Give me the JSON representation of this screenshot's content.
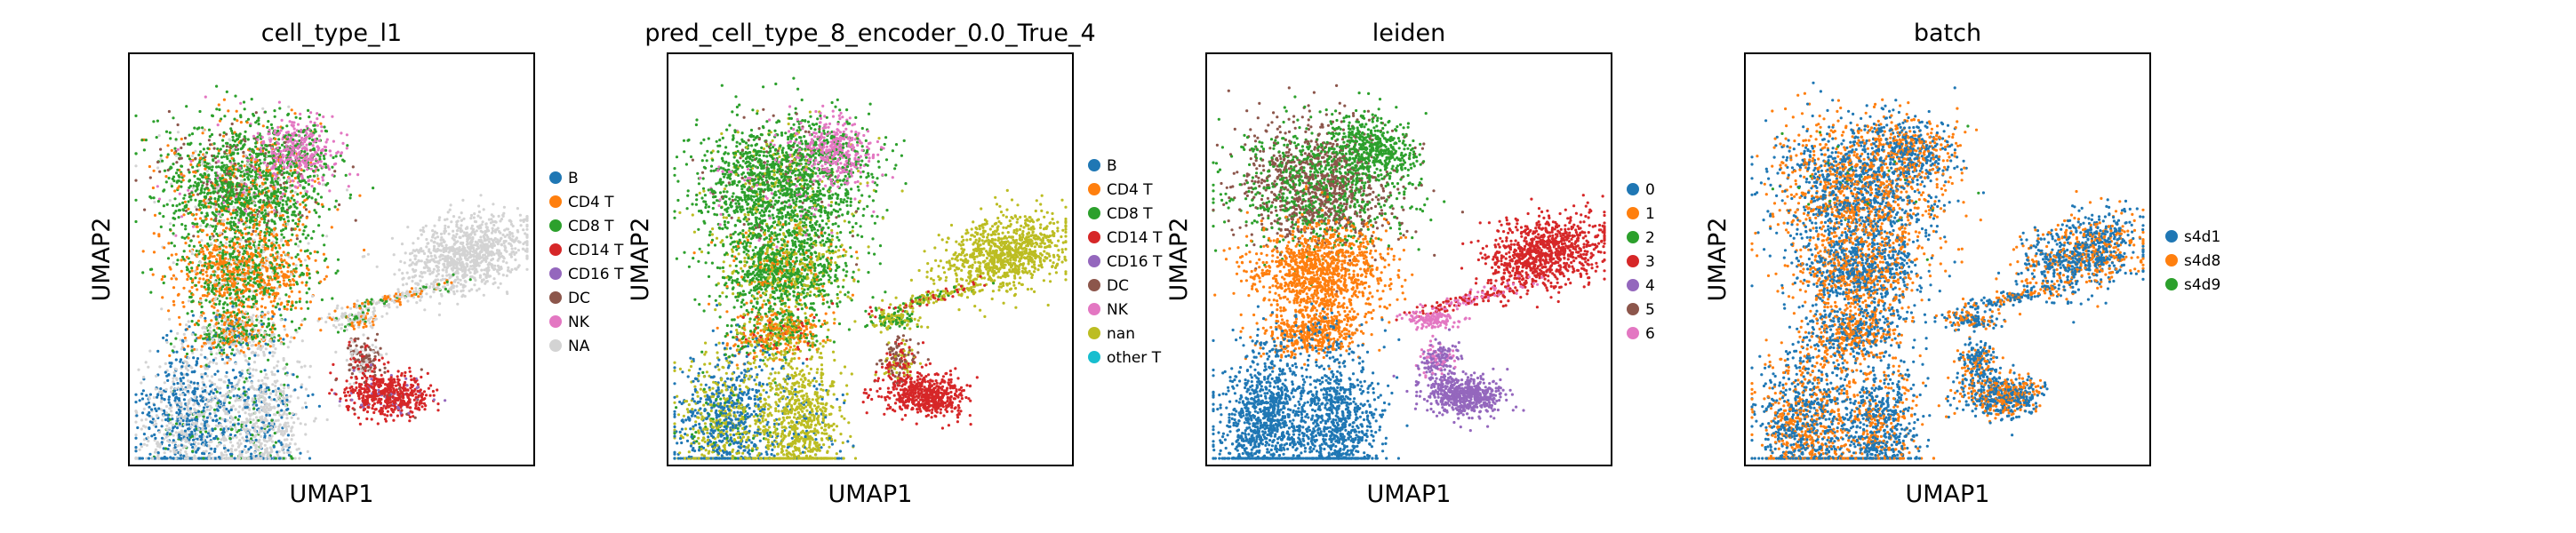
{
  "figure": {
    "panels": [
      {
        "chart_data": {
          "type": "scatter",
          "title": "cell_type_l1",
          "xlabel": "UMAP1",
          "ylabel": "UMAP2",
          "grid": false,
          "legend_position": "right",
          "legend": [
            {
              "label": "B",
              "color": "#1f77b4"
            },
            {
              "label": "CD4 T",
              "color": "#ff7f0e"
            },
            {
              "label": "CD8 T",
              "color": "#2ca02c"
            },
            {
              "label": "CD14 T",
              "color": "#d62728"
            },
            {
              "label": "CD16 T",
              "color": "#9467bd"
            },
            {
              "label": "DC",
              "color": "#8c564b"
            },
            {
              "label": "NK",
              "color": "#e377c2"
            },
            {
              "label": "NA",
              "color": "#d3d3d3"
            }
          ],
          "regions": [
            {
              "name": "upper-left",
              "mix": [
                [
                  2,
                  0.62
                ],
                [
                  1,
                  0.16
                ],
                [
                  5,
                  0.1
                ],
                [
                  6,
                  0.04
                ],
                [
                  7,
                  0.08
                ]
              ]
            },
            {
              "name": "upper-right-lobe",
              "mix": [
                [
                  6,
                  0.7
                ],
                [
                  2,
                  0.3
                ]
              ]
            },
            {
              "name": "center",
              "mix": [
                [
                  1,
                  0.55
                ],
                [
                  2,
                  0.35
                ],
                [
                  7,
                  0.1
                ]
              ]
            },
            {
              "name": "neck",
              "mix": [
                [
                  1,
                  0.3
                ],
                [
                  2,
                  0.3
                ],
                [
                  7,
                  0.3
                ],
                [
                  0,
                  0.1
                ]
              ]
            },
            {
              "name": "bottom-left",
              "mix": [
                [
                  0,
                  0.5
                ],
                [
                  7,
                  0.45
                ],
                [
                  2,
                  0.05
                ]
              ]
            },
            {
              "name": "bottom-middle",
              "mix": [
                [
                  7,
                  0.7
                ],
                [
                  0,
                  0.2
                ],
                [
                  2,
                  0.1
                ]
              ]
            },
            {
              "name": "right-arm",
              "mix": [
                [
                  7,
                  1.0
                ]
              ]
            },
            {
              "name": "thin-bridge",
              "mix": [
                [
                  7,
                  0.6
                ],
                [
                  1,
                  0.2
                ],
                [
                  2,
                  0.2
                ]
              ]
            },
            {
              "name": "pink-island",
              "mix": [
                [
                  7,
                  0.6
                ],
                [
                  2,
                  0.2
                ],
                [
                  1,
                  0.2
                ]
              ]
            },
            {
              "name": "lower-right-stem",
              "mix": [
                [
                  5,
                  0.45
                ],
                [
                  7,
                  0.35
                ],
                [
                  3,
                  0.2
                ]
              ]
            },
            {
              "name": "lower-right-blob",
              "mix": [
                [
                  3,
                  0.9
                ],
                [
                  4,
                  0.08
                ],
                [
                  5,
                  0.02
                ]
              ]
            }
          ]
        }
      },
      {
        "chart_data": {
          "type": "scatter",
          "title": "pred_cell_type_8_encoder_0.0_True_4",
          "xlabel": "UMAP1",
          "ylabel": "UMAP2",
          "grid": false,
          "legend_position": "right",
          "legend": [
            {
              "label": "B",
              "color": "#1f77b4"
            },
            {
              "label": "CD4 T",
              "color": "#ff7f0e"
            },
            {
              "label": "CD8 T",
              "color": "#2ca02c"
            },
            {
              "label": "CD14 T",
              "color": "#d62728"
            },
            {
              "label": "CD16 T",
              "color": "#9467bd"
            },
            {
              "label": "DC",
              "color": "#8c564b"
            },
            {
              "label": "NK",
              "color": "#e377c2"
            },
            {
              "label": "nan",
              "color": "#bcbd22"
            },
            {
              "label": "other T",
              "color": "#17becf"
            }
          ],
          "regions": [
            {
              "name": "upper-left",
              "mix": [
                [
                  2,
                  0.8
                ],
                [
                  7,
                  0.1
                ],
                [
                  6,
                  0.05
                ],
                [
                  5,
                  0.05
                ]
              ]
            },
            {
              "name": "upper-right-lobe",
              "mix": [
                [
                  6,
                  0.75
                ],
                [
                  2,
                  0.25
                ]
              ]
            },
            {
              "name": "center",
              "mix": [
                [
                  2,
                  0.7
                ],
                [
                  7,
                  0.2
                ],
                [
                  1,
                  0.1
                ]
              ]
            },
            {
              "name": "neck",
              "mix": [
                [
                  1,
                  0.4
                ],
                [
                  2,
                  0.3
                ],
                [
                  7,
                  0.2
                ],
                [
                  3,
                  0.1
                ]
              ]
            },
            {
              "name": "bottom-left",
              "mix": [
                [
                  0,
                  0.55
                ],
                [
                  7,
                  0.4
                ],
                [
                  2,
                  0.05
                ]
              ]
            },
            {
              "name": "bottom-middle",
              "mix": [
                [
                  7,
                  0.9
                ],
                [
                  0,
                  0.1
                ]
              ]
            },
            {
              "name": "right-arm",
              "mix": [
                [
                  7,
                  1.0
                ]
              ]
            },
            {
              "name": "thin-bridge",
              "mix": [
                [
                  7,
                  0.6
                ],
                [
                  2,
                  0.2
                ],
                [
                  3,
                  0.2
                ]
              ]
            },
            {
              "name": "pink-island",
              "mix": [
                [
                  7,
                  0.6
                ],
                [
                  2,
                  0.4
                ]
              ]
            },
            {
              "name": "lower-right-stem",
              "mix": [
                [
                  5,
                  0.4
                ],
                [
                  7,
                  0.3
                ],
                [
                  3,
                  0.3
                ]
              ]
            },
            {
              "name": "lower-right-blob",
              "mix": [
                [
                  3,
                  1.0
                ]
              ]
            }
          ]
        }
      },
      {
        "chart_data": {
          "type": "scatter",
          "title": "leiden",
          "xlabel": "UMAP1",
          "ylabel": "UMAP2",
          "grid": false,
          "legend_position": "right",
          "legend": [
            {
              "label": "0",
              "color": "#1f77b4"
            },
            {
              "label": "1",
              "color": "#ff7f0e"
            },
            {
              "label": "2",
              "color": "#2ca02c"
            },
            {
              "label": "3",
              "color": "#d62728"
            },
            {
              "label": "4",
              "color": "#9467bd"
            },
            {
              "label": "5",
              "color": "#8c564b"
            },
            {
              "label": "6",
              "color": "#e377c2"
            }
          ],
          "regions": [
            {
              "name": "upper-left",
              "mix": [
                [
                  5,
                  0.55
                ],
                [
                  2,
                  0.45
                ]
              ]
            },
            {
              "name": "upper-right-lobe",
              "mix": [
                [
                  2,
                  1.0
                ]
              ]
            },
            {
              "name": "center",
              "mix": [
                [
                  1,
                  1.0
                ]
              ]
            },
            {
              "name": "neck",
              "mix": [
                [
                  1,
                  0.85
                ],
                [
                  0,
                  0.15
                ]
              ]
            },
            {
              "name": "bottom-left",
              "mix": [
                [
                  0,
                  1.0
                ]
              ]
            },
            {
              "name": "bottom-middle",
              "mix": [
                [
                  0,
                  1.0
                ]
              ]
            },
            {
              "name": "right-arm",
              "mix": [
                [
                  3,
                  1.0
                ]
              ]
            },
            {
              "name": "thin-bridge",
              "mix": [
                [
                  3,
                  0.6
                ],
                [
                  6,
                  0.4
                ]
              ]
            },
            {
              "name": "pink-island",
              "mix": [
                [
                  6,
                  1.0
                ]
              ]
            },
            {
              "name": "lower-right-stem",
              "mix": [
                [
                  4,
                  0.7
                ],
                [
                  6,
                  0.3
                ]
              ]
            },
            {
              "name": "lower-right-blob",
              "mix": [
                [
                  4,
                  1.0
                ]
              ]
            }
          ]
        }
      },
      {
        "chart_data": {
          "type": "scatter",
          "title": "batch",
          "xlabel": "UMAP1",
          "ylabel": "UMAP2",
          "grid": false,
          "legend_position": "right",
          "legend": [
            {
              "label": "s4d1",
              "color": "#1f77b4"
            },
            {
              "label": "s4d8",
              "color": "#ff7f0e"
            },
            {
              "label": "s4d9",
              "color": "#2ca02c"
            }
          ],
          "regions": [
            {
              "name": "upper-left",
              "mix": [
                [
                  0,
                  0.5
                ],
                [
                  1,
                  0.48
                ],
                [
                  2,
                  0.02
                ]
              ]
            },
            {
              "name": "upper-right-lobe",
              "mix": [
                [
                  0,
                  0.55
                ],
                [
                  1,
                  0.45
                ]
              ]
            },
            {
              "name": "center",
              "mix": [
                [
                  0,
                  0.5
                ],
                [
                  1,
                  0.5
                ]
              ]
            },
            {
              "name": "neck",
              "mix": [
                [
                  0,
                  0.5
                ],
                [
                  1,
                  0.5
                ]
              ]
            },
            {
              "name": "bottom-left",
              "mix": [
                [
                  0,
                  0.55
                ],
                [
                  1,
                  0.45
                ]
              ]
            },
            {
              "name": "bottom-middle",
              "mix": [
                [
                  0,
                  0.6
                ],
                [
                  1,
                  0.4
                ]
              ]
            },
            {
              "name": "right-arm",
              "mix": [
                [
                  0,
                  0.6
                ],
                [
                  1,
                  0.4
                ]
              ]
            },
            {
              "name": "thin-bridge",
              "mix": [
                [
                  0,
                  0.6
                ],
                [
                  1,
                  0.4
                ]
              ]
            },
            {
              "name": "pink-island",
              "mix": [
                [
                  0,
                  0.6
                ],
                [
                  1,
                  0.4
                ]
              ]
            },
            {
              "name": "lower-right-stem",
              "mix": [
                [
                  0,
                  0.6
                ],
                [
                  1,
                  0.4
                ]
              ]
            },
            {
              "name": "lower-right-blob",
              "mix": [
                [
                  0,
                  0.6
                ],
                [
                  1,
                  0.4
                ]
              ]
            }
          ]
        }
      }
    ]
  }
}
